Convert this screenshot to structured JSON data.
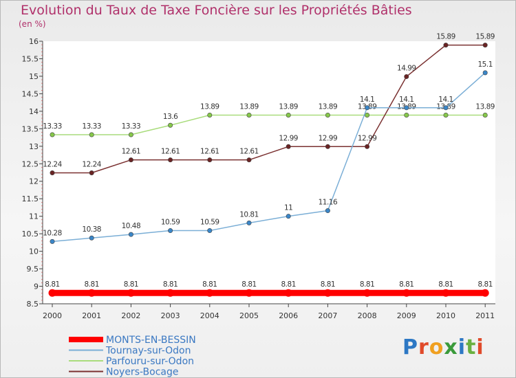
{
  "title": "Evolution du Taux de Taxe Foncière sur les Propriétés Bâties",
  "unit_label": "(en %)",
  "logo_text": "Proxiti",
  "chart_data": {
    "type": "line",
    "title": "Evolution du Taux de Taxe Foncière sur les Propriétés Bâties",
    "ylabel": "(en %)",
    "xlabel": "",
    "x": [
      "2000",
      "2001",
      "2002",
      "2003",
      "2004",
      "2005",
      "2006",
      "2007",
      "2008",
      "2009",
      "2010",
      "2011"
    ],
    "ylim": [
      8.5,
      16
    ],
    "yticks": [
      "8.5",
      "9",
      "9.5",
      "10",
      "10.5",
      "11",
      "11.5",
      "12",
      "12.5",
      "13",
      "13.5",
      "14",
      "14.5",
      "15",
      "15.5",
      "16"
    ],
    "series": [
      {
        "name": "MONTS-EN-BESSIN",
        "color": "#ff0000",
        "marker": "#ff0000",
        "width": 9,
        "values": [
          8.81,
          8.81,
          8.81,
          8.81,
          8.81,
          8.81,
          8.81,
          8.81,
          8.81,
          8.81,
          8.81,
          8.81
        ],
        "labels": [
          "8.81",
          "8.81",
          "8.81",
          "8.81",
          "8.81",
          "8.81",
          "8.81",
          "8.81",
          "8.81",
          "8.81",
          "8.81",
          "8.81"
        ]
      },
      {
        "name": "Tournay-sur-Odon",
        "color": "#7aaed6",
        "marker": "#3a86c8",
        "width": 1.5,
        "values": [
          10.28,
          10.38,
          10.48,
          10.59,
          10.59,
          10.81,
          11,
          11.16,
          14.1,
          14.1,
          14.1,
          15.1
        ],
        "labels": [
          "10.28",
          "10.38",
          "10.48",
          "10.59",
          "10.59",
          "10.81",
          "11",
          "11.16",
          "14.1",
          "14.1",
          "14.1",
          "15.1"
        ]
      },
      {
        "name": "Parfouru-sur-Odon",
        "color": "#a9dc7c",
        "marker": "#86c84a",
        "width": 1.5,
        "values": [
          13.33,
          13.33,
          13.33,
          13.6,
          13.89,
          13.89,
          13.89,
          13.89,
          13.89,
          13.89,
          13.89,
          13.89
        ],
        "labels": [
          "13.33",
          "13.33",
          "13.33",
          "13.6",
          "13.89",
          "13.89",
          "13.89",
          "13.89",
          "13.89",
          "13.89",
          "13.89",
          "13.89"
        ]
      },
      {
        "name": "Noyers-Bocage",
        "color": "#7a3030",
        "marker": "#6a2424",
        "width": 1.5,
        "values": [
          12.24,
          12.24,
          12.61,
          12.61,
          12.61,
          12.61,
          12.99,
          12.99,
          12.99,
          14.99,
          15.89,
          15.89
        ],
        "labels": [
          "12.24",
          "12.24",
          "12.61",
          "12.61",
          "12.61",
          "12.61",
          "12.99",
          "12.99",
          "12.99",
          "14.99",
          "15.89",
          "15.89"
        ]
      }
    ]
  }
}
